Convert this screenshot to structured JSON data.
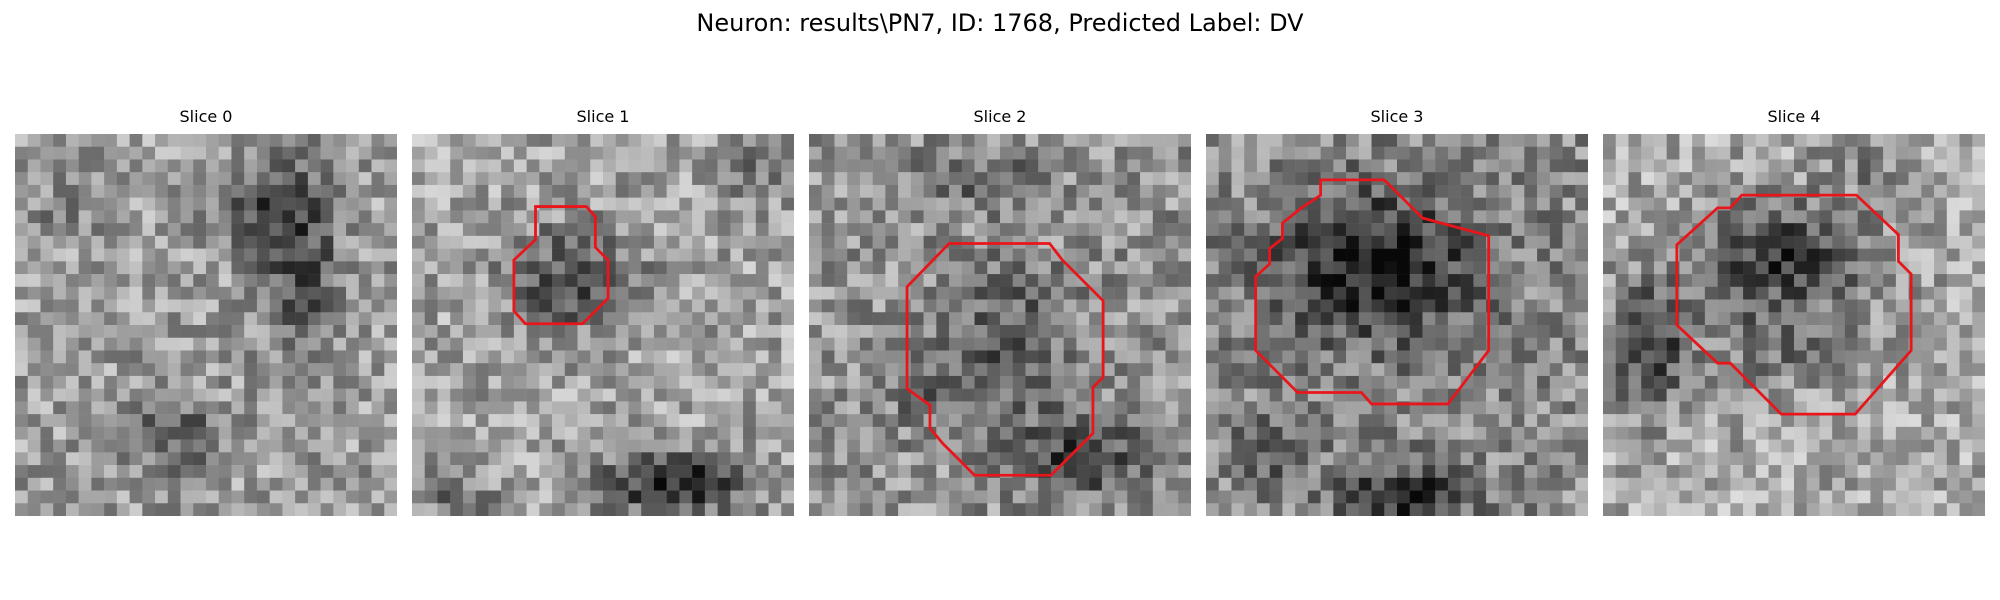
{
  "figure": {
    "title": "Neuron: results\\PN7, ID: 1768, Predicted Label: DV"
  },
  "panels": [
    {
      "title": "Slice 0",
      "has_contour": false
    },
    {
      "title": "Slice 1",
      "has_contour": true
    },
    {
      "title": "Slice 2",
      "has_contour": true
    },
    {
      "title": "Slice 3",
      "has_contour": true
    },
    {
      "title": "Slice 4",
      "has_contour": true
    }
  ],
  "colors": {
    "contour": "#e8161b",
    "background": "#ffffff"
  }
}
